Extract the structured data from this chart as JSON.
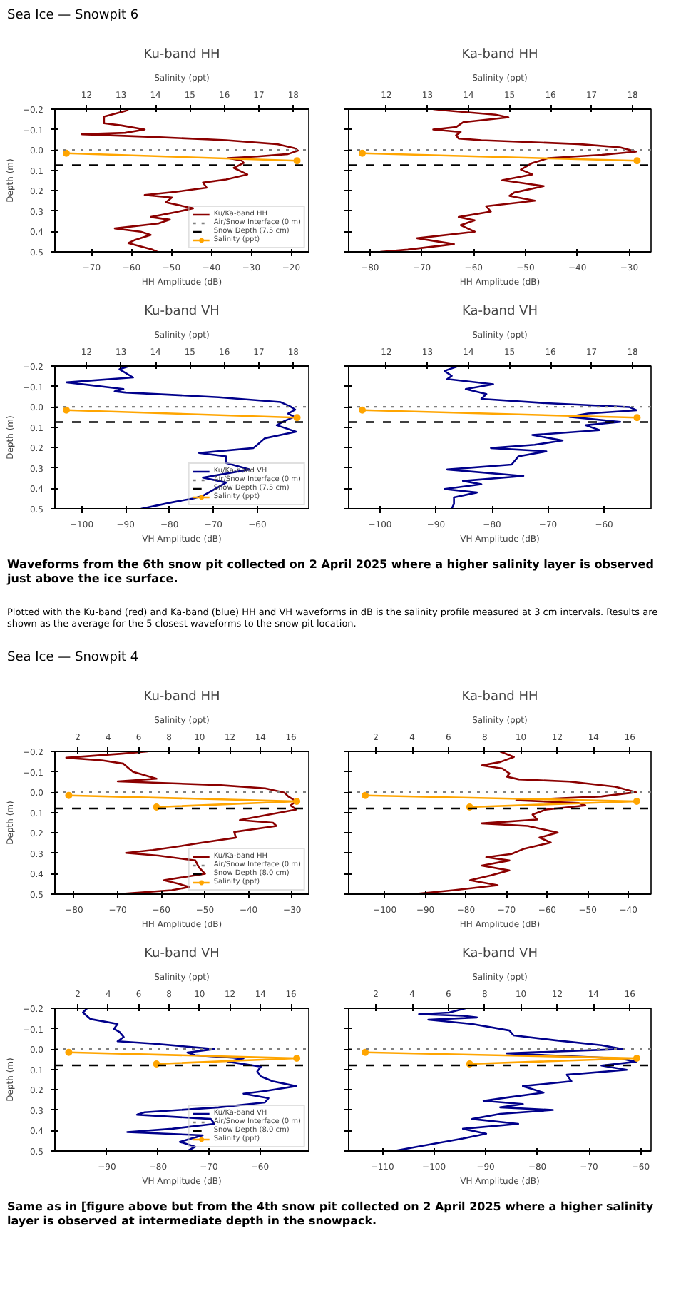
{
  "chart_data": [
    {
      "type": "line",
      "title": "Ku-band HH",
      "xlabel": "HH Amplitude (dB)",
      "x2label": "Salinity (ppt)",
      "ylabel": "Depth (m)",
      "xlim": [
        -79.2,
        -15.6
      ],
      "xticks": [
        {
          "value": -70,
          "label": "−70"
        },
        {
          "value": -60,
          "label": "−60"
        },
        {
          "value": -50,
          "label": "−50"
        },
        {
          "value": -40,
          "label": "−40"
        },
        {
          "value": -30,
          "label": "−30"
        },
        {
          "value": -20,
          "label": "−20"
        }
      ],
      "x2lim": [
        11.08,
        18.45
      ],
      "x2ticks": [
        12,
        13,
        14,
        15,
        16,
        17,
        18
      ],
      "ylim": [
        0.5,
        -0.2
      ],
      "yticks": [
        {
          "value": -0.2,
          "label": "−0.2"
        },
        {
          "value": -0.1,
          "label": "−0.1"
        },
        {
          "value": 0,
          "label": "0.0"
        },
        {
          "value": 0.1,
          "label": "0.1"
        },
        {
          "value": 0.2,
          "label": "0.2"
        },
        {
          "value": 0.3,
          "label": "0.3"
        },
        {
          "value": 0.4,
          "label": "0.4"
        },
        {
          "value": 0.5,
          "label": "0.5"
        }
      ],
      "legend": "bottom right",
      "ref_lines": [
        {
          "axis": "y",
          "value": 0,
          "label": "Air/Snow Interface (0 m)",
          "color": "#808080",
          "line_style": "dotted"
        },
        {
          "axis": "y",
          "value": 0.075,
          "label": "Snow Depth (7.5 cm)",
          "color": "#000000",
          "line_style": "dashed"
        }
      ],
      "series": [
        {
          "name": "Ku/Ka-band HH",
          "color": "#8b0000",
          "x": [
            -60.8,
            -61.4,
            -66.9,
            -66.9,
            -62.5,
            -56.7,
            -61.6,
            -72.4,
            -54.8,
            -36.3,
            -23.7,
            -19.1,
            -18.3,
            -20.8,
            -28.5,
            -35.8,
            -32.4,
            -31.9,
            -34.4,
            -31.0,
            -36.3,
            -42.1,
            -41.2,
            -48.9,
            -56.7,
            -49.9,
            -51.4,
            -44.6,
            -48.9,
            -55.2,
            -50.4,
            -53.3,
            -64.2,
            -57.7,
            -55.2,
            -59.1,
            -60.8,
            -54.8,
            -53.5
          ],
          "values": [
            -0.2,
            -0.192,
            -0.163,
            -0.131,
            -0.12,
            -0.1,
            -0.084,
            -0.077,
            -0.064,
            -0.048,
            -0.029,
            -0.008,
            0.003,
            0.02,
            0.032,
            0.04,
            0.052,
            0.064,
            0.088,
            0.12,
            0.145,
            0.16,
            0.185,
            0.205,
            0.221,
            0.233,
            0.257,
            0.286,
            0.305,
            0.329,
            0.342,
            0.361,
            0.385,
            0.401,
            0.417,
            0.441,
            0.457,
            0.489,
            0.5
          ]
        },
        {
          "name": "Salinity (ppt)",
          "color": "#ffa500",
          "axis": "x2",
          "marker": "circle",
          "x": [
            11.41,
            18.11
          ],
          "values": [
            0.016,
            0.053
          ]
        }
      ],
      "annotations": [
        "Sea Ice — Snowpit 6"
      ]
    },
    {
      "type": "line",
      "title": "Ka-band HH",
      "xlabel": "HH Amplitude (dB)",
      "x2label": "Salinity (ppt)",
      "xlim": [
        -84.1,
        -25.8
      ],
      "xticks": [
        {
          "value": -80,
          "label": "−80"
        },
        {
          "value": -70,
          "label": "−70"
        },
        {
          "value": -60,
          "label": "−60"
        },
        {
          "value": -50,
          "label": "−50"
        },
        {
          "value": -40,
          "label": "−40"
        },
        {
          "value": -30,
          "label": "−30"
        }
      ],
      "x2lim": [
        11.08,
        18.45
      ],
      "x2ticks": [
        12,
        13,
        14,
        15,
        16,
        17,
        18
      ],
      "ylim": [
        0.5,
        -0.2
      ],
      "yticks": [
        {
          "value": -0.2,
          "label": null
        },
        {
          "value": -0.1,
          "label": null
        },
        {
          "value": 0,
          "label": null
        },
        {
          "value": 0.1,
          "label": null
        },
        {
          "value": 0.2,
          "label": null
        },
        {
          "value": 0.3,
          "label": null
        },
        {
          "value": 0.4,
          "label": null
        },
        {
          "value": 0.5,
          "label": null
        }
      ],
      "tick_labels": "x",
      "ref_lines": [
        {
          "axis": "y",
          "value": 0,
          "color": "#808080",
          "line_style": "dotted"
        },
        {
          "axis": "y",
          "value": 0.075,
          "color": "#000000",
          "line_style": "dashed"
        }
      ],
      "series": [
        {
          "color": "#8b0000",
          "x": [
            -67.8,
            -64.7,
            -55.8,
            -53.3,
            -62.0,
            -63.4,
            -67.8,
            -62.5,
            -63.4,
            -62.9,
            -58.5,
            -39.8,
            -31.8,
            -28.7,
            -35.3,
            -45.6,
            -48.7,
            -50.9,
            -48.7,
            -54.5,
            -46.5,
            -52.2,
            -53.1,
            -48.2,
            -57.6,
            -56.7,
            -62.9,
            -59.8,
            -62.5,
            -59.8,
            -70.9,
            -63.8,
            -72.7,
            -78.0
          ],
          "values": [
            -0.2,
            -0.192,
            -0.173,
            -0.16,
            -0.136,
            -0.112,
            -0.1,
            -0.088,
            -0.072,
            -0.056,
            -0.048,
            -0.029,
            -0.013,
            0.008,
            0.024,
            0.04,
            0.064,
            0.096,
            0.12,
            0.148,
            0.177,
            0.209,
            0.225,
            0.249,
            0.276,
            0.302,
            0.329,
            0.345,
            0.369,
            0.401,
            0.433,
            0.462,
            0.489,
            0.5
          ]
        },
        {
          "color": "#ffa500",
          "axis": "x2",
          "marker": "circle",
          "x": [
            11.41,
            18.11
          ],
          "values": [
            0.016,
            0.053
          ]
        }
      ]
    },
    {
      "type": "line",
      "title": "Ku-band VH",
      "xlabel": "VH Amplitude (dB)",
      "x2label": "Salinity (ppt)",
      "ylabel": "Depth (m)",
      "xlim": [
        -106.1,
        -48.3
      ],
      "xticks": [
        {
          "value": -100,
          "label": "−100"
        },
        {
          "value": -90,
          "label": "−90"
        },
        {
          "value": -80,
          "label": "−80"
        },
        {
          "value": -70,
          "label": "−70"
        },
        {
          "value": -60,
          "label": "−60"
        }
      ],
      "x2lim": [
        11.08,
        18.45
      ],
      "x2ticks": [
        12,
        13,
        14,
        15,
        16,
        17,
        18
      ],
      "ylim": [
        0.5,
        -0.2
      ],
      "yticks": [
        {
          "value": -0.2,
          "label": "−0.2"
        },
        {
          "value": -0.1,
          "label": "−0.1"
        },
        {
          "value": 0,
          "label": "0.0"
        },
        {
          "value": 0.1,
          "label": "0.1"
        },
        {
          "value": 0.2,
          "label": "0.2"
        },
        {
          "value": 0.3,
          "label": "0.3"
        },
        {
          "value": 0.4,
          "label": "0.4"
        },
        {
          "value": 0.5,
          "label": "0.5"
        }
      ],
      "legend": "bottom right",
      "ref_lines": [
        {
          "axis": "y",
          "value": 0,
          "label": "Air/Snow Interface (0 m)",
          "color": "#808080",
          "line_style": "dotted"
        },
        {
          "axis": "y",
          "value": 0.075,
          "label": "Snow Depth (7.5 cm)",
          "color": "#000000",
          "line_style": "dashed"
        }
      ],
      "series": [
        {
          "name": "Ku/Ka-band VH",
          "color": "#00008b",
          "x": [
            -89.1,
            -91.4,
            -88.3,
            -103.4,
            -90.5,
            -92.5,
            -90.0,
            -68.8,
            -54.7,
            -52.5,
            -51.4,
            -53.0,
            -51.6,
            -53.8,
            -55.6,
            -51.2,
            -58.3,
            -60.0,
            -60.9,
            -73.3,
            -67.1,
            -67.1,
            -61.8,
            -72.4,
            -67.1,
            -69.7,
            -72.4,
            -74.6,
            -79.4,
            -86.5
          ],
          "values": [
            -0.2,
            -0.184,
            -0.144,
            -0.12,
            -0.087,
            -0.076,
            -0.07,
            -0.047,
            -0.023,
            -0.002,
            0.014,
            0.033,
            0.049,
            0.069,
            0.09,
            0.122,
            0.154,
            0.186,
            0.202,
            0.226,
            0.243,
            0.275,
            0.307,
            0.347,
            0.371,
            0.403,
            0.436,
            0.449,
            0.468,
            0.5
          ]
        },
        {
          "name": "Salinity (ppt)",
          "color": "#ffa500",
          "axis": "x2",
          "marker": "circle",
          "x": [
            11.41,
            18.11
          ],
          "values": [
            0.016,
            0.053
          ]
        }
      ]
    },
    {
      "type": "line",
      "title": "Ka-band VH",
      "xlabel": "VH Amplitude (dB)",
      "x2label": "Salinity (ppt)",
      "xlim": [
        -105.6,
        -51.6
      ],
      "xticks": [
        {
          "value": -100,
          "label": "−100"
        },
        {
          "value": -90,
          "label": "−90"
        },
        {
          "value": -80,
          "label": "−80"
        },
        {
          "value": -70,
          "label": "−70"
        },
        {
          "value": -60,
          "label": "−60"
        }
      ],
      "x2lim": [
        11.08,
        18.45
      ],
      "x2ticks": [
        12,
        13,
        14,
        15,
        16,
        17,
        18
      ],
      "ylim": [
        0.5,
        -0.2
      ],
      "yticks": [
        {
          "value": -0.2,
          "label": null
        },
        {
          "value": -0.1,
          "label": null
        },
        {
          "value": 0,
          "label": null
        },
        {
          "value": 0.1,
          "label": null
        },
        {
          "value": 0.2,
          "label": null
        },
        {
          "value": 0.3,
          "label": null
        },
        {
          "value": 0.4,
          "label": null
        },
        {
          "value": 0.5,
          "label": null
        }
      ],
      "tick_labels": "x",
      "ref_lines": [
        {
          "axis": "y",
          "value": 0,
          "color": "#808080",
          "line_style": "dotted"
        },
        {
          "axis": "y",
          "value": 0.075,
          "color": "#000000",
          "line_style": "dashed"
        }
      ],
      "series": [
        {
          "color": "#00008b",
          "x": [
            -86.0,
            -88.5,
            -87.2,
            -88.0,
            -79.8,
            -84.7,
            -81.0,
            -81.9,
            -70.3,
            -55.5,
            -54.2,
            -62.9,
            -66.2,
            -57.1,
            -63.3,
            -60.8,
            -72.8,
            -67.4,
            -72.4,
            -80.2,
            -70.3,
            -75.3,
            -76.5,
            -88.0,
            -74.4,
            -85.2,
            -81.9,
            -88.5,
            -82.7,
            -86.8,
            -86.8,
            -87.2
          ],
          "values": [
            -0.2,
            -0.176,
            -0.152,
            -0.136,
            -0.111,
            -0.087,
            -0.063,
            -0.039,
            -0.018,
            0.001,
            0.017,
            0.033,
            0.049,
            0.074,
            0.09,
            0.114,
            0.138,
            0.165,
            0.186,
            0.202,
            0.218,
            0.243,
            0.283,
            0.307,
            0.339,
            0.363,
            0.379,
            0.403,
            0.42,
            0.444,
            0.476,
            0.5
          ]
        },
        {
          "color": "#ffa500",
          "axis": "x2",
          "marker": "circle",
          "x": [
            11.41,
            18.11
          ],
          "values": [
            0.016,
            0.053
          ]
        }
      ],
      "annotations": [
        "Waveforms from the 6th snow pit collected on 2 April 2025 where a higher salinity layer is observed just above the ice surface.",
        "Plotted with the Ku-band (red) and Ka-band (blue) HH and VH waveforms in dB is the salinity profile measured at 3 cm intervals. Results are shown as the average for the 5 closest waveforms to the snow pit location."
      ]
    },
    {
      "type": "line",
      "title": "Ku-band HH",
      "xlabel": "HH Amplitude (dB)",
      "x2label": "Salinity (ppt)",
      "ylabel": "Depth (m)",
      "xlim": [
        -84.4,
        -26.2
      ],
      "xticks": [
        {
          "value": -80,
          "label": "−80"
        },
        {
          "value": -70,
          "label": "−70"
        },
        {
          "value": -60,
          "label": "−60"
        },
        {
          "value": -50,
          "label": "−50"
        },
        {
          "value": -40,
          "label": "−40"
        },
        {
          "value": -30,
          "label": "−30"
        }
      ],
      "x2lim": [
        0.5,
        17.17
      ],
      "x2ticks": [
        2,
        4,
        6,
        8,
        10,
        12,
        14,
        16
      ],
      "ylim": [
        0.5,
        -0.2
      ],
      "yticks": [
        {
          "value": -0.2,
          "label": "−0.2"
        },
        {
          "value": -0.1,
          "label": "−0.1"
        },
        {
          "value": 0,
          "label": "0.0"
        },
        {
          "value": 0.1,
          "label": "0.1"
        },
        {
          "value": 0.2,
          "label": "0.2"
        },
        {
          "value": 0.3,
          "label": "0.3"
        },
        {
          "value": 0.4,
          "label": "0.4"
        },
        {
          "value": 0.5,
          "label": "0.5"
        }
      ],
      "legend": "bottom right",
      "ref_lines": [
        {
          "axis": "y",
          "value": 0,
          "label": "Air/Snow Interface (0 m)",
          "color": "#808080",
          "line_style": "dotted"
        },
        {
          "axis": "y",
          "value": 0.08,
          "label": "Snow Depth (8.0 cm)",
          "color": "#000000",
          "line_style": "dashed"
        }
      ],
      "series": [
        {
          "name": "Ku/Ka-band HH",
          "color": "#8b0000",
          "x": [
            -63.1,
            -69.1,
            -81.8,
            -73.6,
            -68.7,
            -67.4,
            -66.5,
            -64.7,
            -61.1,
            -70.0,
            -46.9,
            -36.2,
            -31.8,
            -30.9,
            -29.1,
            -30.4,
            -29.1,
            -35.3,
            -42.0,
            -34.4,
            -33.6,
            -43.3,
            -42.9,
            -50.5,
            -57.6,
            -62.0,
            -68.1,
            -60.7,
            -52.2,
            -51.4,
            -50.0,
            -59.4,
            -56.2,
            -53.6,
            -57.6,
            -70.0
          ],
          "values": [
            -0.2,
            -0.189,
            -0.169,
            -0.156,
            -0.14,
            -0.116,
            -0.1,
            -0.089,
            -0.066,
            -0.053,
            -0.035,
            -0.019,
            0.002,
            0.021,
            0.045,
            0.065,
            0.085,
            0.11,
            0.137,
            0.15,
            0.166,
            0.195,
            0.223,
            0.247,
            0.271,
            0.284,
            0.298,
            0.311,
            0.335,
            0.368,
            0.4,
            0.432,
            0.448,
            0.465,
            0.481,
            0.5
          ]
        },
        {
          "name": "Salinity (ppt)",
          "color": "#ffa500",
          "axis": "x2",
          "marker": "circle",
          "x": [
            1.41,
            16.38,
            7.17
          ],
          "values": [
            0.016,
            0.045,
            0.073
          ]
        }
      ],
      "annotations": [
        "Sea Ice — Snowpit 4"
      ]
    },
    {
      "type": "line",
      "title": "Ka-band HH",
      "xlabel": "HH Amplitude (dB)",
      "x2label": "Salinity (ppt)",
      "xlim": [
        -108.9,
        -34.4
      ],
      "xticks": [
        {
          "value": -100,
          "label": "−100"
        },
        {
          "value": -90,
          "label": "−90"
        },
        {
          "value": -80,
          "label": "−80"
        },
        {
          "value": -70,
          "label": "−70"
        },
        {
          "value": -60,
          "label": "−60"
        },
        {
          "value": -50,
          "label": "−50"
        },
        {
          "value": -40,
          "label": "−40"
        }
      ],
      "x2lim": [
        0.5,
        17.17
      ],
      "x2ticks": [
        2,
        4,
        6,
        8,
        10,
        12,
        14,
        16
      ],
      "ylim": [
        0.5,
        -0.2
      ],
      "yticks": [
        {
          "value": -0.2,
          "label": null
        },
        {
          "value": -0.1,
          "label": null
        },
        {
          "value": 0,
          "label": null
        },
        {
          "value": 0.1,
          "label": null
        },
        {
          "value": 0.2,
          "label": null
        },
        {
          "value": 0.3,
          "label": null
        },
        {
          "value": 0.4,
          "label": null
        },
        {
          "value": 0.5,
          "label": null
        }
      ],
      "tick_labels": "x",
      "ref_lines": [
        {
          "axis": "y",
          "value": 0,
          "color": "#808080",
          "line_style": "dotted"
        },
        {
          "axis": "y",
          "value": 0.08,
          "color": "#000000",
          "line_style": "dashed"
        }
      ],
      "series": [
        {
          "color": "#8b0000",
          "x": [
            -71.6,
            -68.2,
            -71.6,
            -76.1,
            -71.0,
            -69.3,
            -69.9,
            -67.0,
            -54.5,
            -43.2,
            -38.1,
            -46.6,
            -67.6,
            -52.3,
            -50.6,
            -60.2,
            -63.6,
            -62.5,
            -76.1,
            -64.8,
            -57.4,
            -61.9,
            -59.1,
            -65.9,
            -68.8,
            -75.0,
            -69.3,
            -76.1,
            -69.3,
            -73.9,
            -79.0,
            -72.2,
            -83.0,
            -93.0
          ],
          "values": [
            -0.2,
            -0.173,
            -0.148,
            -0.132,
            -0.116,
            -0.092,
            -0.076,
            -0.063,
            -0.052,
            -0.027,
            0.0,
            0.021,
            0.04,
            0.053,
            0.065,
            0.085,
            0.11,
            0.134,
            0.153,
            0.166,
            0.198,
            0.223,
            0.247,
            0.279,
            0.303,
            0.319,
            0.335,
            0.36,
            0.384,
            0.408,
            0.432,
            0.456,
            0.481,
            0.5
          ]
        },
        {
          "color": "#ffa500",
          "axis": "x2",
          "marker": "circle",
          "x": [
            1.41,
            16.38,
            7.17
          ],
          "values": [
            0.016,
            0.045,
            0.073
          ]
        }
      ]
    },
    {
      "type": "line",
      "title": "Ku-band VH",
      "xlabel": "VH Amplitude (dB)",
      "x2label": "Salinity (ppt)",
      "ylabel": "Depth (m)",
      "xlim": [
        -100.2,
        -50.4
      ],
      "xticks": [
        {
          "value": -90,
          "label": "−90"
        },
        {
          "value": -80,
          "label": "−80"
        },
        {
          "value": -70,
          "label": "−70"
        },
        {
          "value": -60,
          "label": "−60"
        }
      ],
      "x2lim": [
        0.5,
        17.17
      ],
      "x2ticks": [
        2,
        4,
        6,
        8,
        10,
        12,
        14,
        16
      ],
      "ylim": [
        0.5,
        -0.2
      ],
      "yticks": [
        {
          "value": -0.2,
          "label": "−0.2"
        },
        {
          "value": -0.1,
          "label": "−0.1"
        },
        {
          "value": 0,
          "label": "0.0"
        },
        {
          "value": 0.1,
          "label": "0.1"
        },
        {
          "value": 0.2,
          "label": "0.2"
        },
        {
          "value": 0.3,
          "label": "0.3"
        },
        {
          "value": 0.4,
          "label": "0.4"
        },
        {
          "value": 0.5,
          "label": "0.5"
        }
      ],
      "legend": "bottom right",
      "ref_lines": [
        {
          "axis": "y",
          "value": 0,
          "label": "Air/Snow Interface (0 m)",
          "color": "#808080",
          "line_style": "dotted"
        },
        {
          "axis": "y",
          "value": 0.08,
          "label": "Snow Depth (8.0 cm)",
          "color": "#000000",
          "line_style": "dashed"
        }
      ],
      "series": [
        {
          "name": "Ku/Ka-band VH",
          "color": "#00008b",
          "x": [
            -93.9,
            -94.7,
            -93.2,
            -87.9,
            -88.6,
            -87.5,
            -86.7,
            -87.9,
            -81.0,
            -68.9,
            -74.2,
            -72.7,
            -63.2,
            -66.2,
            -59.8,
            -60.5,
            -59.8,
            -57.5,
            -52.9,
            -59.0,
            -63.2,
            -58.3,
            -59.0,
            -68.1,
            -82.6,
            -84.1,
            -69.6,
            -68.9,
            -77.2,
            -86.0,
            -71.2,
            -75.7,
            -72.7,
            -74.2
          ],
          "values": [
            -0.2,
            -0.179,
            -0.147,
            -0.123,
            -0.099,
            -0.083,
            -0.059,
            -0.038,
            -0.027,
            0.0,
            0.017,
            0.03,
            0.046,
            0.062,
            0.086,
            0.11,
            0.134,
            0.158,
            0.182,
            0.206,
            0.219,
            0.241,
            0.262,
            0.286,
            0.31,
            0.322,
            0.343,
            0.367,
            0.391,
            0.407,
            0.423,
            0.455,
            0.479,
            0.5
          ]
        },
        {
          "name": "Salinity (ppt)",
          "color": "#ffa500",
          "axis": "x2",
          "marker": "circle",
          "x": [
            1.41,
            16.38,
            7.17
          ],
          "values": [
            0.016,
            0.045,
            0.073
          ]
        }
      ]
    },
    {
      "type": "line",
      "title": "Ka-band VH",
      "xlabel": "VH Amplitude (dB)",
      "x2label": "Salinity (ppt)",
      "xlim": [
        -116.5,
        -58.0
      ],
      "xticks": [
        {
          "value": -110,
          "label": "−110"
        },
        {
          "value": -100,
          "label": "−100"
        },
        {
          "value": -90,
          "label": "−90"
        },
        {
          "value": -80,
          "label": "−80"
        },
        {
          "value": -70,
          "label": "−70"
        },
        {
          "value": -60,
          "label": "−60"
        }
      ],
      "x2lim": [
        0.5,
        17.17
      ],
      "x2ticks": [
        2,
        4,
        6,
        8,
        10,
        12,
        14,
        16
      ],
      "ylim": [
        0.5,
        -0.2
      ],
      "yticks": [
        {
          "value": -0.2,
          "label": null
        },
        {
          "value": -0.1,
          "label": null
        },
        {
          "value": 0,
          "label": null
        },
        {
          "value": 0.1,
          "label": null
        },
        {
          "value": 0.2,
          "label": null
        },
        {
          "value": 0.3,
          "label": null
        },
        {
          "value": 0.4,
          "label": null
        },
        {
          "value": 0.5,
          "label": null
        }
      ],
      "tick_labels": "x",
      "ref_lines": [
        {
          "axis": "y",
          "value": 0,
          "color": "#808080",
          "line_style": "dotted"
        },
        {
          "axis": "y",
          "value": 0.08,
          "color": "#000000",
          "line_style": "dashed"
        }
      ],
      "series": [
        {
          "color": "#00008b",
          "x": [
            -93.9,
            -97.1,
            -102.9,
            -94.4,
            -91.7,
            -101.1,
            -92.6,
            -85.4,
            -84.6,
            -76.5,
            -67.6,
            -63.6,
            -85.9,
            -64.0,
            -60.9,
            -67.6,
            -62.7,
            -74.3,
            -73.4,
            -82.8,
            -78.8,
            -85.9,
            -90.4,
            -82.8,
            -87.2,
            -77.0,
            -87.2,
            -92.6,
            -83.7,
            -94.4,
            -89.9,
            -94.4,
            -101.5,
            -107.8
          ],
          "values": [
            -0.2,
            -0.179,
            -0.171,
            -0.163,
            -0.155,
            -0.144,
            -0.123,
            -0.091,
            -0.067,
            -0.043,
            -0.019,
            0.0,
            0.021,
            0.046,
            0.062,
            0.081,
            0.102,
            0.126,
            0.158,
            0.182,
            0.214,
            0.238,
            0.254,
            0.27,
            0.286,
            0.299,
            0.318,
            0.343,
            0.367,
            0.391,
            0.415,
            0.439,
            0.471,
            0.5
          ]
        },
        {
          "color": "#ffa500",
          "axis": "x2",
          "marker": "circle",
          "x": [
            1.41,
            16.38,
            7.17
          ],
          "values": [
            0.016,
            0.045,
            0.073
          ]
        }
      ],
      "annotations": [
        "Same as in [figure above but from the 4th snow pit collected on 2 April 2025 where a higher salinity layer is observed at intermediate depth in the snowpack."
      ]
    }
  ]
}
